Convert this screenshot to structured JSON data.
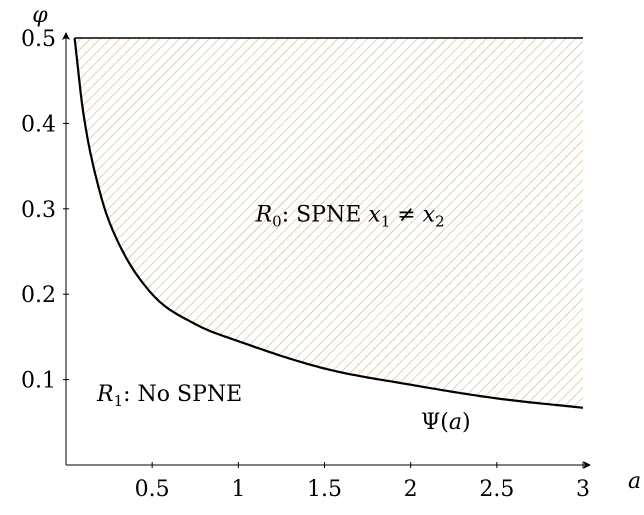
{
  "chart_data": {
    "type": "area",
    "title": "",
    "xlabel": "a",
    "ylabel": "φ",
    "xlim": [
      0,
      3
    ],
    "ylim": [
      0,
      0.5
    ],
    "x_ticks": [
      0.5,
      1,
      1.5,
      2,
      2.5,
      3
    ],
    "x_tick_labels": [
      "0.5",
      "1",
      "1.5",
      "2",
      "2.5",
      "3"
    ],
    "y_ticks": [
      0.1,
      0.2,
      0.3,
      0.4,
      0.5
    ],
    "y_tick_labels": [
      "0.1",
      "0.2",
      "0.3",
      "0.4",
      "0.5"
    ],
    "grid": false,
    "curve": {
      "label": "Ψ(a)",
      "x": [
        0.05,
        0.1,
        0.2,
        0.3,
        0.5,
        0.75,
        1,
        1.5,
        2,
        2.5,
        3
      ],
      "y": [
        0.5,
        0.413,
        0.317,
        0.262,
        0.2,
        0.165,
        0.145,
        0.113,
        0.094,
        0.078,
        0.067
      ]
    },
    "shaded_region": {
      "between": "Ψ(a) and φ = 0.5",
      "fill": "hatched",
      "hatch_color": "#d4b896"
    },
    "annotations": [
      {
        "id": "r0",
        "parts": [
          [
            "R",
            "i"
          ],
          [
            "0",
            "sub"
          ],
          [
            ": SPNE ",
            "n"
          ],
          [
            "x",
            "i"
          ],
          [
            "1",
            "sub"
          ],
          [
            " ≠ ",
            "n"
          ],
          [
            "x",
            "i"
          ],
          [
            "2",
            "sub"
          ]
        ],
        "x": 1.1,
        "y": 0.285
      },
      {
        "id": "r1",
        "parts": [
          [
            "R",
            "i"
          ],
          [
            "1",
            "sub"
          ],
          [
            ": No SPNE",
            "n"
          ]
        ],
        "x": 0.18,
        "y": 0.075
      },
      {
        "id": "psi",
        "parts": [
          [
            "Ψ(",
            "n"
          ],
          [
            "a",
            "i"
          ],
          [
            ")",
            "n"
          ]
        ],
        "x": 2.06,
        "y": 0.042
      }
    ],
    "colors": {
      "line": "#000000",
      "hatch": "#d4b896"
    }
  }
}
